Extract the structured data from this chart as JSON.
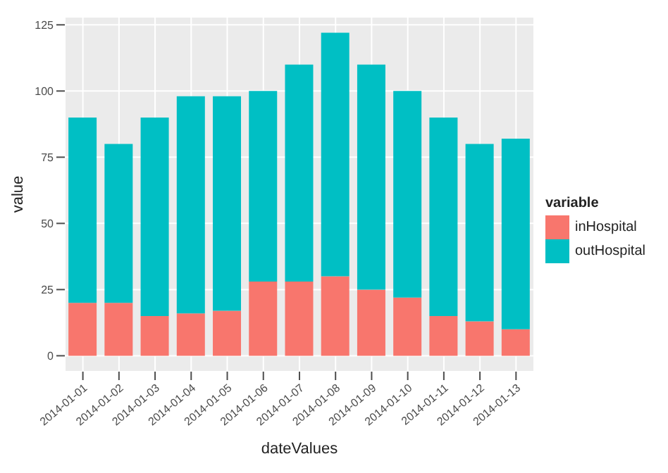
{
  "chart_data": {
    "type": "bar",
    "stacked": true,
    "xlabel": "dateValues",
    "ylabel": "value",
    "legend_title": "variable",
    "legend": "right",
    "grid": true,
    "categories": [
      "2014-01-01",
      "2014-01-02",
      "2014-01-03",
      "2014-01-04",
      "2014-01-05",
      "2014-01-06",
      "2014-01-07",
      "2014-01-08",
      "2014-01-09",
      "2014-01-10",
      "2014-01-11",
      "2014-01-12",
      "2014-01-13"
    ],
    "series": [
      {
        "name": "inHospital",
        "color": "#f8766d",
        "values": [
          20,
          20,
          15,
          16,
          17,
          28,
          28,
          30,
          25,
          22,
          15,
          13,
          10
        ]
      },
      {
        "name": "outHospital",
        "color": "#00bfc4",
        "values": [
          70,
          60,
          75,
          82,
          81,
          72,
          82,
          92,
          85,
          78,
          75,
          67,
          72
        ]
      }
    ],
    "ylim": [
      -6,
      128
    ],
    "yticks": [
      0,
      25,
      50,
      75,
      100,
      125
    ]
  }
}
